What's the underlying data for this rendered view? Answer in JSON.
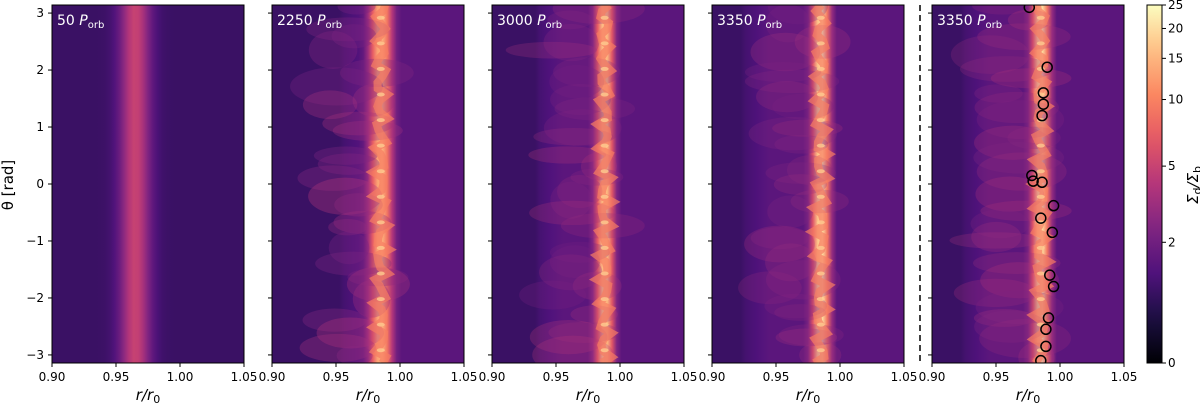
{
  "chart_data": {
    "type": "heatmap",
    "xlabel_main": "r/r",
    "xlabel_sub": "0",
    "ylabel": "θ [rad]",
    "xlim": [
      0.9,
      1.05
    ],
    "ylim": [
      -3.14159,
      3.14159
    ],
    "x_ticks": [
      "0.90",
      "0.95",
      "1.00",
      "1.05"
    ],
    "x_tick_values": [
      0.9,
      0.95,
      1.0,
      1.05
    ],
    "y_ticks": [
      "3",
      "2",
      "1",
      "0",
      "−1",
      "−2",
      "−3"
    ],
    "y_tick_values": [
      3,
      2,
      1,
      0,
      -1,
      -2,
      -3
    ],
    "colormap": "magma",
    "colorbar": {
      "label": "Σd/Σb",
      "label_main": "Σ",
      "label_sub1": "d",
      "label_sep": "/Σ",
      "label_sub2": "b",
      "scale": "log",
      "ticks": [
        "25",
        "20",
        "15",
        "10",
        "5",
        "2",
        "0"
      ],
      "tick_values": [
        25,
        20,
        15,
        10,
        5,
        2,
        0
      ]
    },
    "panels": [
      {
        "label_num": "50",
        "label_main": "P",
        "label_sub": "orb",
        "ring_r": 0.965,
        "ring_width": 0.012,
        "peak": 0.55,
        "turbulence": 0.0,
        "inner_cavity": 0.88
      },
      {
        "label_num": "2250",
        "label_main": "P",
        "label_sub": "orb",
        "ring_r": 0.985,
        "ring_width": 0.01,
        "peak": 0.85,
        "turbulence": 1.0,
        "inner_cavity": 0.955
      },
      {
        "label_num": "3000",
        "label_main": "P",
        "label_sub": "orb",
        "ring_r": 0.988,
        "ring_width": 0.008,
        "peak": 0.9,
        "turbulence": 0.8,
        "inner_cavity": 0.935
      },
      {
        "label_num": "3350",
        "label_main": "P",
        "label_sub": "orb",
        "ring_r": 0.985,
        "ring_width": 0.008,
        "peak": 0.95,
        "turbulence": 0.8,
        "inner_cavity": 0.925
      },
      {
        "label_num": "3350",
        "label_main": "P",
        "label_sub": "orb",
        "ring_r": 0.985,
        "ring_width": 0.008,
        "peak": 0.95,
        "turbulence": 0.8,
        "inner_cavity": 0.925,
        "clumps": [
          {
            "r": 0.976,
            "theta": 3.1
          },
          {
            "r": 0.99,
            "theta": 2.05
          },
          {
            "r": 0.987,
            "theta": 1.6
          },
          {
            "r": 0.987,
            "theta": 1.4
          },
          {
            "r": 0.986,
            "theta": 1.2
          },
          {
            "r": 0.978,
            "theta": 0.15
          },
          {
            "r": 0.979,
            "theta": 0.05
          },
          {
            "r": 0.986,
            "theta": 0.03
          },
          {
            "r": 0.995,
            "theta": -0.38
          },
          {
            "r": 0.985,
            "theta": -0.6
          },
          {
            "r": 0.994,
            "theta": -0.85
          },
          {
            "r": 0.992,
            "theta": -1.6
          },
          {
            "r": 0.995,
            "theta": -1.8
          },
          {
            "r": 0.991,
            "theta": -2.35
          },
          {
            "r": 0.989,
            "theta": -2.55
          },
          {
            "r": 0.989,
            "theta": -2.85
          },
          {
            "r": 0.985,
            "theta": -3.1
          }
        ]
      }
    ]
  }
}
